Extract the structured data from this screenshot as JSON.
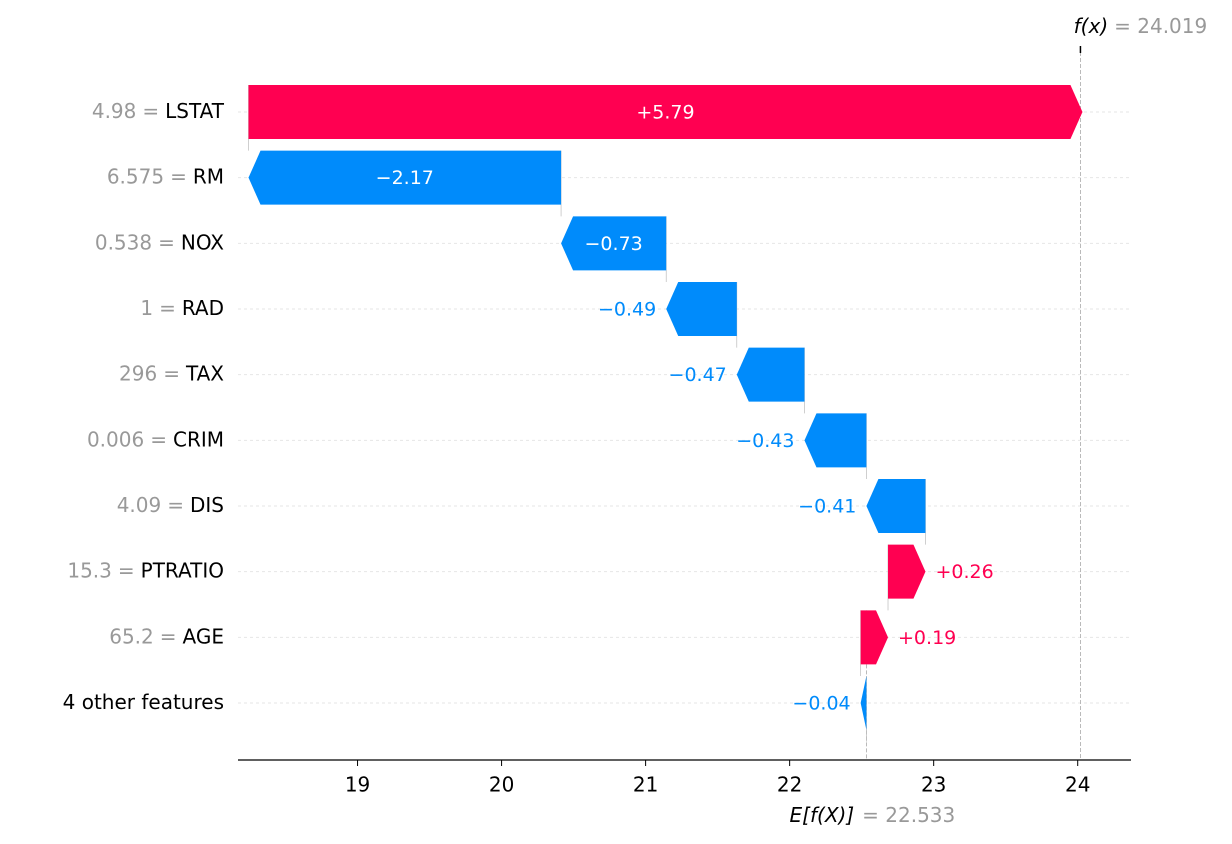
{
  "chart_data": {
    "type": "waterfall",
    "categories": [
      "LSTAT",
      "RM",
      "NOX",
      "RAD",
      "TAX",
      "CRIM",
      "DIS",
      "PTRATIO",
      "AGE",
      "4 other features"
    ],
    "feature_values": [
      "4.98",
      "6.575",
      "0.538",
      "1",
      "296",
      "0.006",
      "4.09",
      "15.3",
      "65.2",
      null
    ],
    "separator": "=",
    "values": [
      5.79,
      -2.17,
      -0.73,
      -0.49,
      -0.47,
      -0.43,
      -0.41,
      0.26,
      0.19,
      -0.04
    ],
    "value_labels": [
      "+5.79",
      "−2.17",
      "−0.73",
      "−0.49",
      "−0.47",
      "−0.43",
      "−0.41",
      "+0.26",
      "+0.19",
      "−0.04"
    ],
    "colors": {
      "positive": "#ff0051",
      "negative": "#008bfb"
    },
    "xlim": [
      18.17,
      24.37
    ],
    "xticks": [
      19,
      20,
      21,
      22,
      23,
      24
    ],
    "base": {
      "label": "E[f(X)]",
      "value": 22.533,
      "value_label": "= 22.533"
    },
    "output": {
      "label": "f(x)",
      "value": 24.019,
      "value_label": "= 24.019"
    }
  }
}
